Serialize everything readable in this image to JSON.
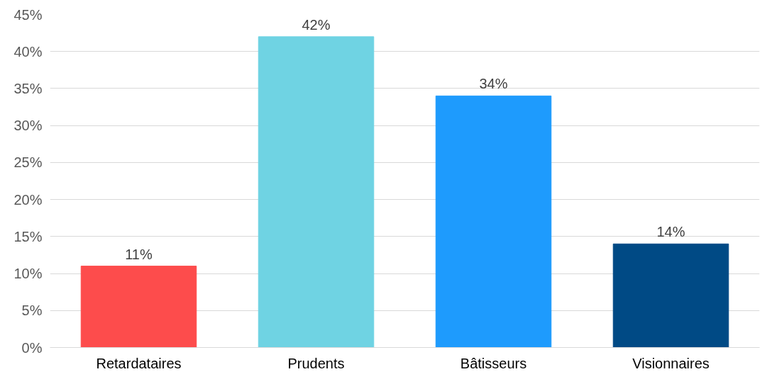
{
  "chart_data": {
    "type": "bar",
    "categories": [
      "Retardataires",
      "Prudents",
      "Bâtisseurs",
      "Visionnaires"
    ],
    "values": [
      11,
      42,
      34,
      14
    ],
    "colors": [
      "#fd4c4c",
      "#6fd3e3",
      "#1e9bfd",
      "#004a85"
    ],
    "value_labels": [
      "11%",
      "42%",
      "34%",
      "14%"
    ],
    "ylim": [
      0,
      45
    ],
    "yticks": [
      {
        "value": 0,
        "label": "0%"
      },
      {
        "value": 5,
        "label": "5%"
      },
      {
        "value": 10,
        "label": "10%"
      },
      {
        "value": 15,
        "label": "15%"
      },
      {
        "value": 20,
        "label": "20%"
      },
      {
        "value": 25,
        "label": "25%"
      },
      {
        "value": 30,
        "label": "30%"
      },
      {
        "value": 35,
        "label": "35%"
      },
      {
        "value": 40,
        "label": "40%"
      },
      {
        "value": 45,
        "label": "45%"
      }
    ],
    "grid": "y"
  }
}
